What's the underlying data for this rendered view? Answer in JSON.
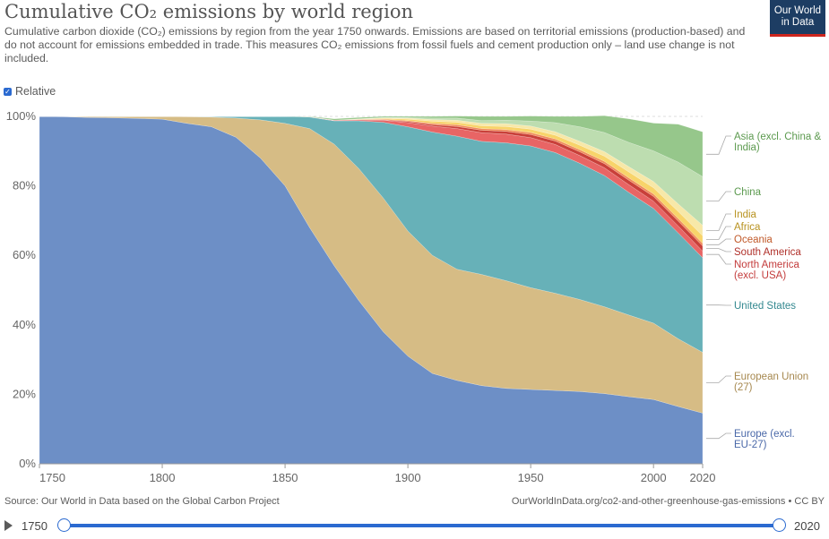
{
  "header": {
    "title": "Cumulative CO₂ emissions by world region",
    "subtitle": "Cumulative carbon dioxide (CO₂) emissions by region from the year 1750 onwards. Emissions are based on territorial emissions (production-based) and do not account for emissions embedded in trade. This measures CO₂ emissions from fossil fuels and cement production only – land use change is not included.",
    "logo_line1": "Our World",
    "logo_line2": "in Data",
    "logo_color": "#1d3d63",
    "logo_accent": "#ce261e"
  },
  "controls": {
    "relative_label": "Relative",
    "relative_checked": true
  },
  "footer": {
    "source": "Source: Our World in Data based on the Global Carbon Project",
    "url": "OurWorldInData.org/co2-and-other-greenhouse-gas-emissions • CC BY"
  },
  "timeline": {
    "start": "1750",
    "end": "2020",
    "accent": "#2b6ad0"
  },
  "chart_data": {
    "type": "area",
    "stacked": true,
    "relative": true,
    "x": [
      1750,
      1760,
      1770,
      1780,
      1790,
      1800,
      1810,
      1820,
      1830,
      1840,
      1850,
      1860,
      1870,
      1880,
      1890,
      1900,
      1910,
      1920,
      1930,
      1940,
      1950,
      1960,
      1970,
      1980,
      1990,
      2000,
      2010,
      2020
    ],
    "xticks": [
      1750,
      1800,
      1850,
      1900,
      1950,
      2000,
      2020
    ],
    "yticks": [
      "0%",
      "20%",
      "40%",
      "60%",
      "80%",
      "100%"
    ],
    "ylim": [
      0,
      100
    ],
    "grid": true,
    "series": [
      {
        "name": "Europe (excl. EU-27)",
        "label_lines": [
          "Europe (excl.",
          "EU-27)"
        ],
        "color": "#6d8fc6",
        "text_color": "#4a68a8",
        "values": [
          100,
          99.9,
          99.7,
          99.6,
          99.4,
          99.2,
          98,
          97,
          94,
          88,
          80,
          68,
          57,
          47,
          38,
          31,
          26,
          24,
          22.5,
          21.7,
          21.4,
          21.1,
          20.8,
          20.2,
          19.3,
          18.5,
          16.5,
          14.6
        ]
      },
      {
        "name": "European Union (27)",
        "label_lines": [
          "European Union",
          "(27)"
        ],
        "color": "#d6bc85",
        "text_color": "#a6884f",
        "values": [
          0,
          0.1,
          0.3,
          0.4,
          0.6,
          0.8,
          1.9,
          2.8,
          5.5,
          11,
          18,
          28.5,
          35,
          38,
          38.5,
          36,
          34,
          32,
          32,
          31,
          29.3,
          28,
          26.5,
          25,
          23.5,
          22,
          19.5,
          17.5
        ]
      },
      {
        "name": "United States",
        "label_lines": [
          "United States"
        ],
        "color": "#67b1b8",
        "text_color": "#33888f",
        "values": [
          0,
          0,
          0,
          0,
          0,
          0,
          0.1,
          0.2,
          0.5,
          1,
          2,
          3.3,
          6.7,
          13.7,
          21.8,
          30,
          35.5,
          38.3,
          38.3,
          39.7,
          40.8,
          40.5,
          39.2,
          37.8,
          35.3,
          33,
          30.5,
          27.2
        ]
      },
      {
        "name": "North America (excl. USA)",
        "label_lines": [
          "North America",
          "(excl. USA)"
        ],
        "color": "#e86565",
        "text_color": "#c33b3b",
        "values": [
          0,
          0,
          0,
          0,
          0,
          0,
          0,
          0,
          0,
          0,
          0,
          0.1,
          0.2,
          0.3,
          0.6,
          1.2,
          1.7,
          2.2,
          2.5,
          2.5,
          2.4,
          2.3,
          2.2,
          2.2,
          2.2,
          2.1,
          2.0,
          1.9
        ]
      },
      {
        "name": "South America",
        "label_lines": [
          "South America"
        ],
        "color": "#c9403a",
        "text_color": "#b0302a",
        "values": [
          0,
          0,
          0,
          0,
          0,
          0,
          0,
          0,
          0,
          0,
          0,
          0,
          0,
          0,
          0.1,
          0.3,
          0.4,
          0.6,
          0.7,
          0.8,
          0.9,
          1.0,
          1.1,
          1.2,
          1.3,
          1.35,
          1.4,
          1.5
        ]
      },
      {
        "name": "Oceania",
        "label_lines": [
          "Oceania"
        ],
        "color": "#f08b5a",
        "text_color": "#c15a2a",
        "values": [
          0,
          0,
          0,
          0,
          0,
          0,
          0,
          0,
          0,
          0,
          0,
          0,
          0,
          0.1,
          0.2,
          0.3,
          0.4,
          0.5,
          0.5,
          0.5,
          0.55,
          0.6,
          0.6,
          0.65,
          0.7,
          0.72,
          0.75,
          0.75
        ]
      },
      {
        "name": "Africa",
        "label_lines": [
          "Africa"
        ],
        "color": "#f8d46a",
        "text_color": "#b8921f",
        "values": [
          0,
          0,
          0,
          0,
          0,
          0,
          0,
          0,
          0,
          0,
          0,
          0,
          0,
          0.1,
          0.2,
          0.4,
          0.6,
          0.7,
          0.8,
          0.9,
          1.0,
          1.1,
          1.3,
          1.5,
          1.7,
          1.8,
          2.0,
          2.2
        ]
      },
      {
        "name": "India",
        "label_lines": [
          "India"
        ],
        "color": "#f7e8a8",
        "text_color": "#b8921f",
        "values": [
          0,
          0,
          0,
          0,
          0,
          0,
          0,
          0,
          0,
          0,
          0,
          0,
          0,
          0.1,
          0.2,
          0.3,
          0.5,
          0.6,
          0.7,
          0.8,
          0.9,
          1.0,
          1.1,
          1.3,
          1.5,
          1.8,
          2.2,
          3.0
        ]
      },
      {
        "name": "China",
        "label_lines": [
          "China"
        ],
        "color": "#bdddb0",
        "text_color": "#5c9a4f",
        "values": [
          0,
          0,
          0,
          0,
          0,
          0,
          0,
          0,
          0,
          0,
          0,
          0,
          0,
          0,
          0.1,
          0.2,
          0.4,
          0.6,
          0.8,
          1.0,
          1.4,
          2.6,
          4.2,
          5.5,
          7.0,
          8.8,
          12.0,
          14.0
        ]
      },
      {
        "name": "Asia (excl. China & India)",
        "label_lines": [
          "Asia (excl. China &",
          "India)"
        ],
        "color": "#96c78b",
        "text_color": "#5c9a4f",
        "values": [
          0,
          0,
          0,
          0,
          0,
          0,
          0,
          0,
          0,
          0,
          0,
          0.1,
          0.4,
          0.4,
          0.3,
          0.3,
          0.5,
          0.6,
          1.2,
          1.1,
          1.45,
          1.8,
          3.0,
          4.85,
          6.8,
          8.0,
          10.9,
          12.9
        ]
      }
    ]
  }
}
